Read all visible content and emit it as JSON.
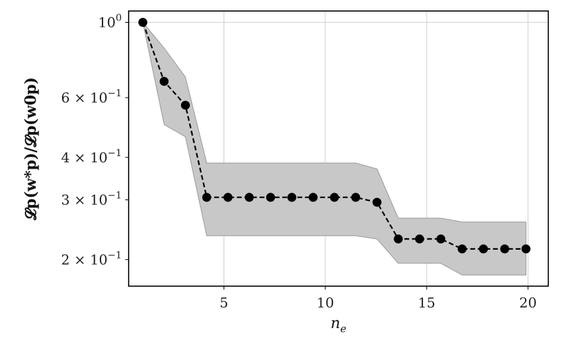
{
  "chart_data": {
    "type": "line",
    "xlabel": "n",
    "xlabel_sub": "e",
    "ylabel": "𝓛p(w*p)/𝓛p(w0p)",
    "yscale": "log",
    "xlim": [
      0.3,
      21.0
    ],
    "ylim": [
      0.167,
      1.08
    ],
    "grid": true,
    "x_ticks": [
      {
        "value": 5,
        "label": "5"
      },
      {
        "value": 10,
        "label": "10"
      },
      {
        "value": 15,
        "label": "15"
      },
      {
        "value": 20,
        "label": "20"
      }
    ],
    "y_ticks": [
      {
        "value": 1.0,
        "mantissa": "10",
        "exponent": "0"
      },
      {
        "value": 0.6,
        "mantissa": "6 × 10",
        "exponent": "−1"
      },
      {
        "value": 0.4,
        "mantissa": "4 × 10",
        "exponent": "−1"
      },
      {
        "value": 0.3,
        "mantissa": "3 × 10",
        "exponent": "−1"
      },
      {
        "value": 0.2,
        "mantissa": "2 × 10",
        "exponent": "−1"
      }
    ],
    "x": [
      1.0,
      2.05,
      3.1,
      4.15,
      5.2,
      6.25,
      7.3,
      8.35,
      9.4,
      10.45,
      11.5,
      12.55,
      13.6,
      14.65,
      15.7,
      16.75,
      17.8,
      18.85,
      19.9
    ],
    "series": [
      {
        "style": "dashed-line-with-markers",
        "color": "#000000",
        "values": [
          1.0,
          0.67,
          0.57,
          0.305,
          0.305,
          0.305,
          0.305,
          0.305,
          0.305,
          0.305,
          0.305,
          0.295,
          0.23,
          0.23,
          0.23,
          0.215,
          0.215,
          0.215,
          0.215
        ]
      }
    ],
    "band": {
      "color": "#c8c8c8",
      "edge_color": "#999999",
      "upper": [
        1.0,
        0.84,
        0.69,
        0.385,
        0.385,
        0.385,
        0.385,
        0.385,
        0.385,
        0.385,
        0.385,
        0.37,
        0.265,
        0.265,
        0.265,
        0.258,
        0.258,
        0.258,
        0.258
      ],
      "lower": [
        1.0,
        0.5,
        0.46,
        0.235,
        0.235,
        0.235,
        0.235,
        0.235,
        0.235,
        0.235,
        0.235,
        0.23,
        0.195,
        0.195,
        0.195,
        0.18,
        0.18,
        0.18,
        0.18
      ]
    }
  }
}
